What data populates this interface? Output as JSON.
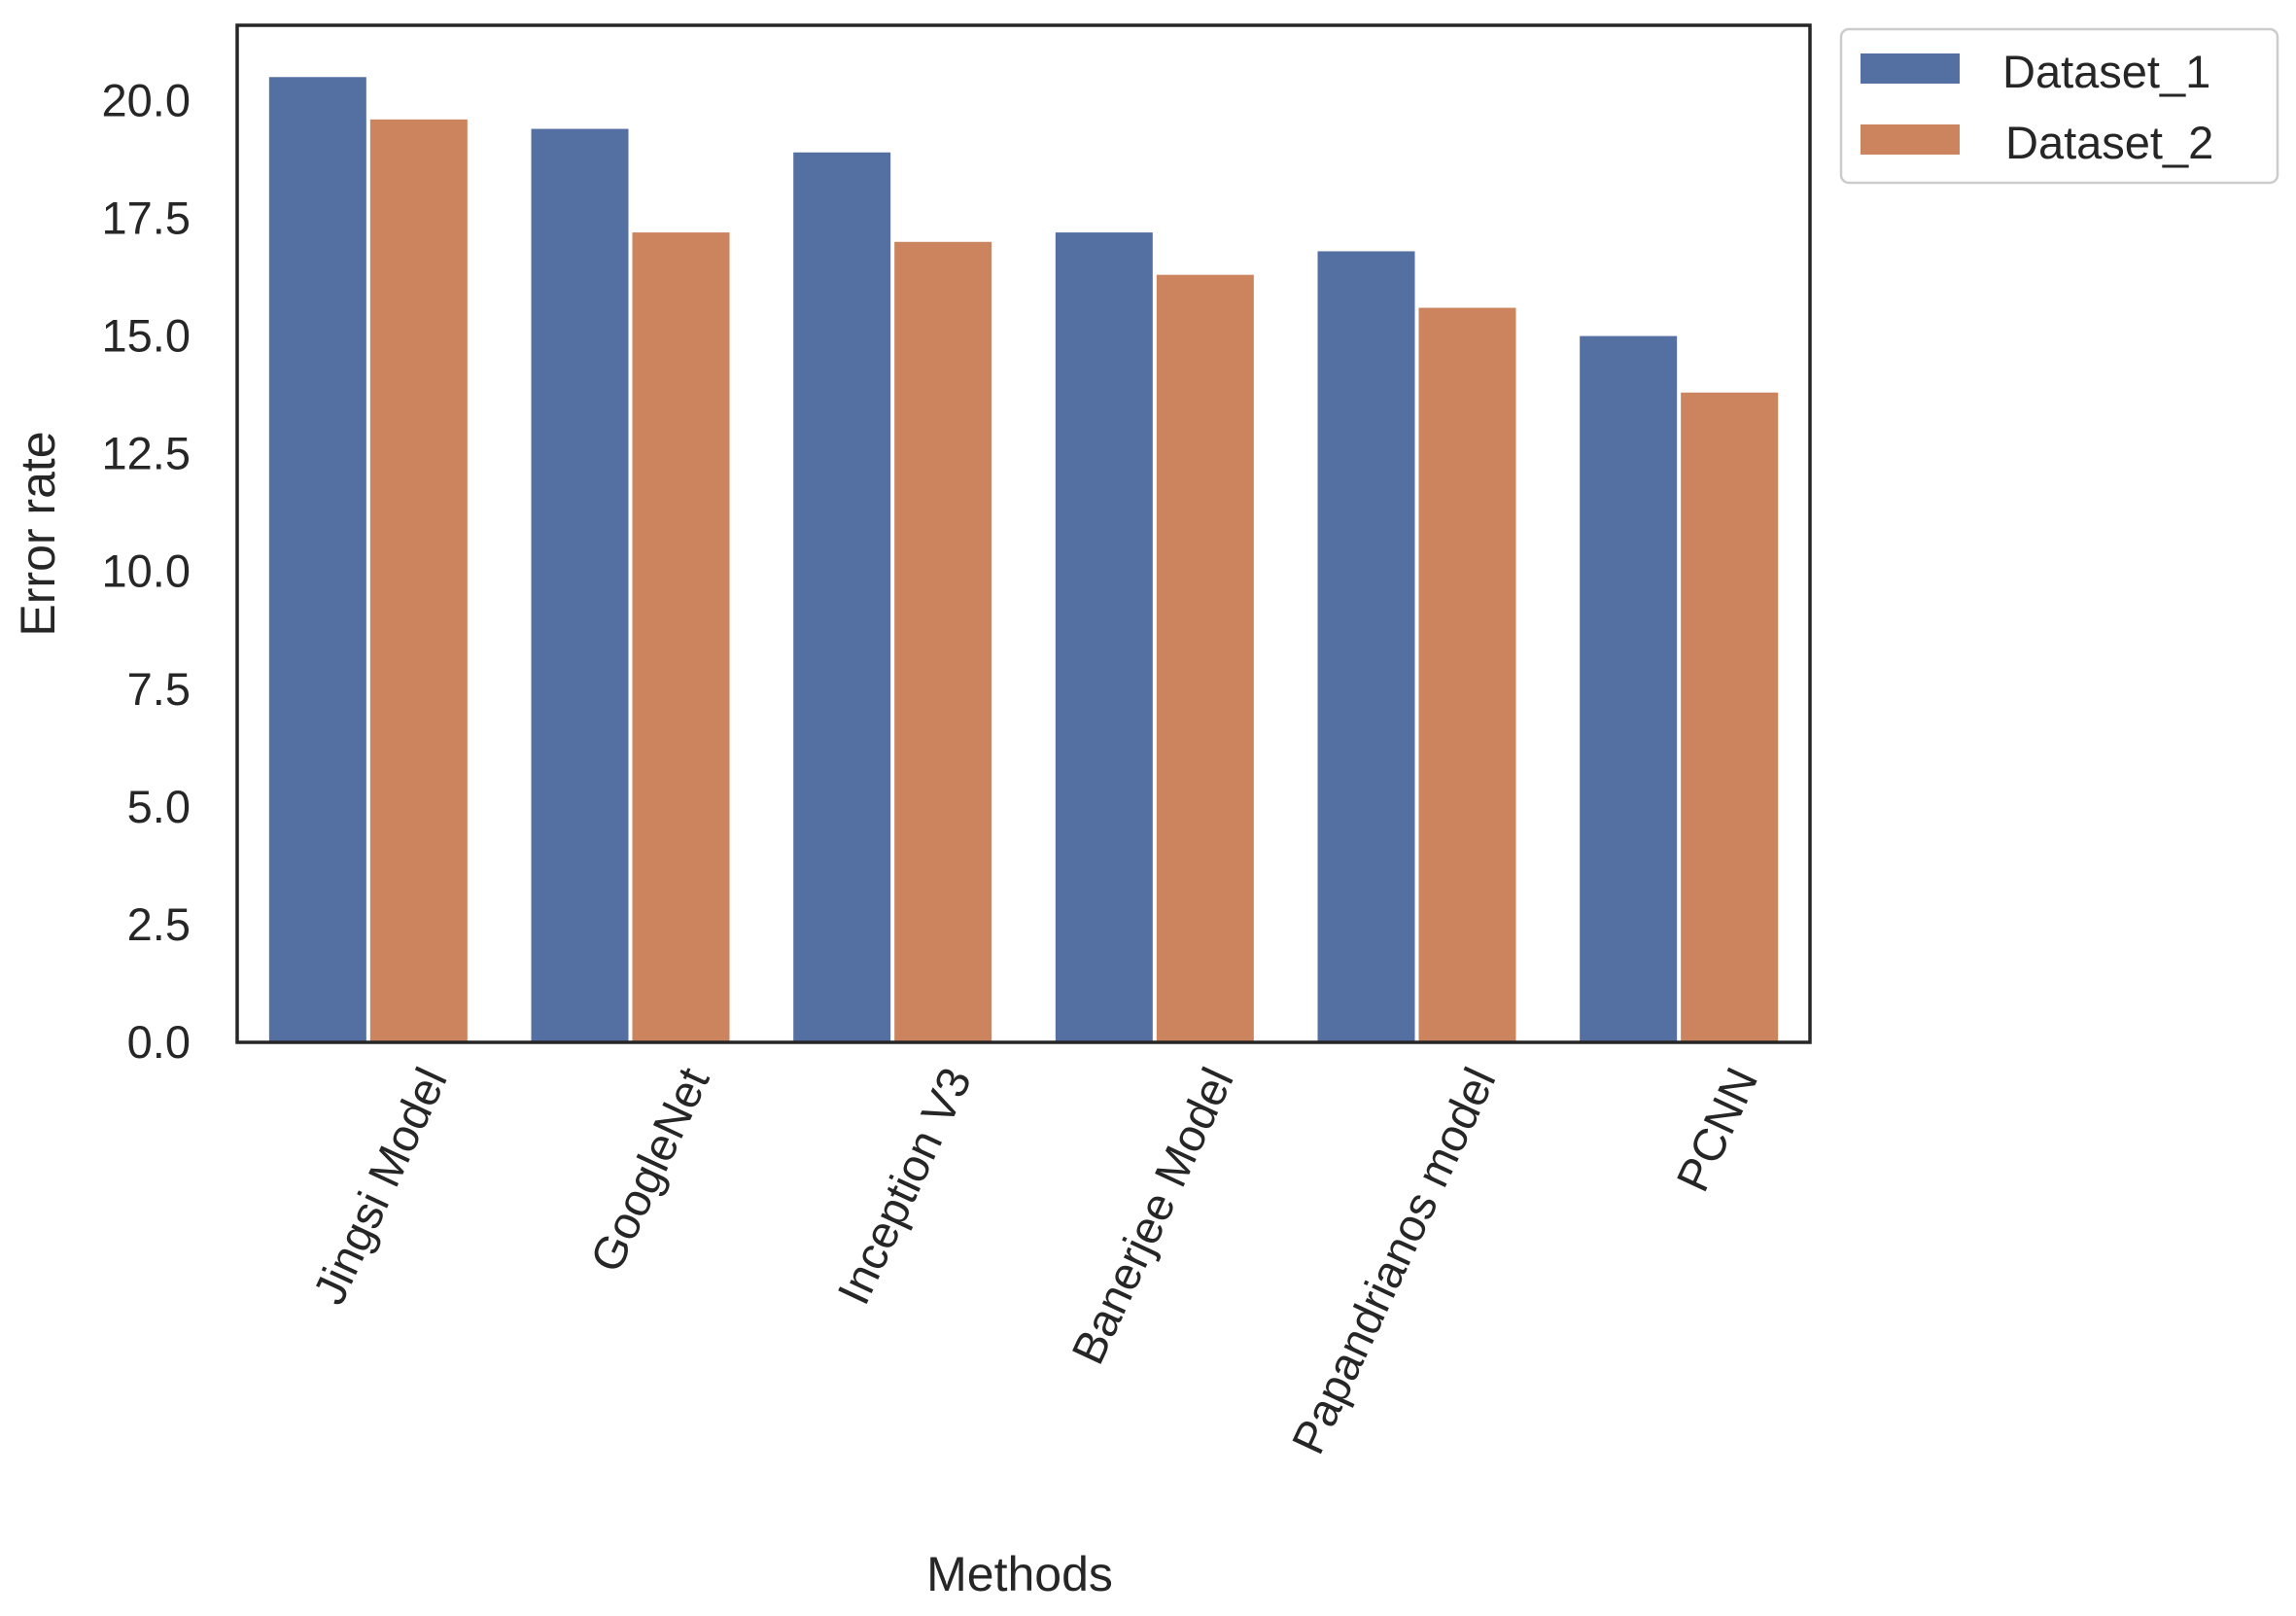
{
  "chart_data": {
    "type": "bar",
    "title": "",
    "xlabel": "Methods",
    "ylabel": "Error rate",
    "categories": [
      "Jingsi Model",
      "GoogleNet",
      "Inception V3",
      "Banerjee Model",
      "Papandrianos model",
      "PCNN"
    ],
    "series": [
      {
        "name": "Dataset_1",
        "color": "#5470a3",
        "values": [
          20.5,
          19.4,
          18.9,
          17.2,
          16.8,
          15.0
        ]
      },
      {
        "name": "Dataset_2",
        "color": "#cc845e",
        "values": [
          19.6,
          17.2,
          17.0,
          16.3,
          15.6,
          13.8
        ]
      }
    ],
    "ylim": [
      0,
      21.6
    ],
    "yticks": [
      "0.0",
      "2.5",
      "5.0",
      "7.5",
      "10.0",
      "12.5",
      "15.0",
      "17.5",
      "20.0"
    ],
    "grid": false,
    "legend_position": "outside top-right"
  }
}
